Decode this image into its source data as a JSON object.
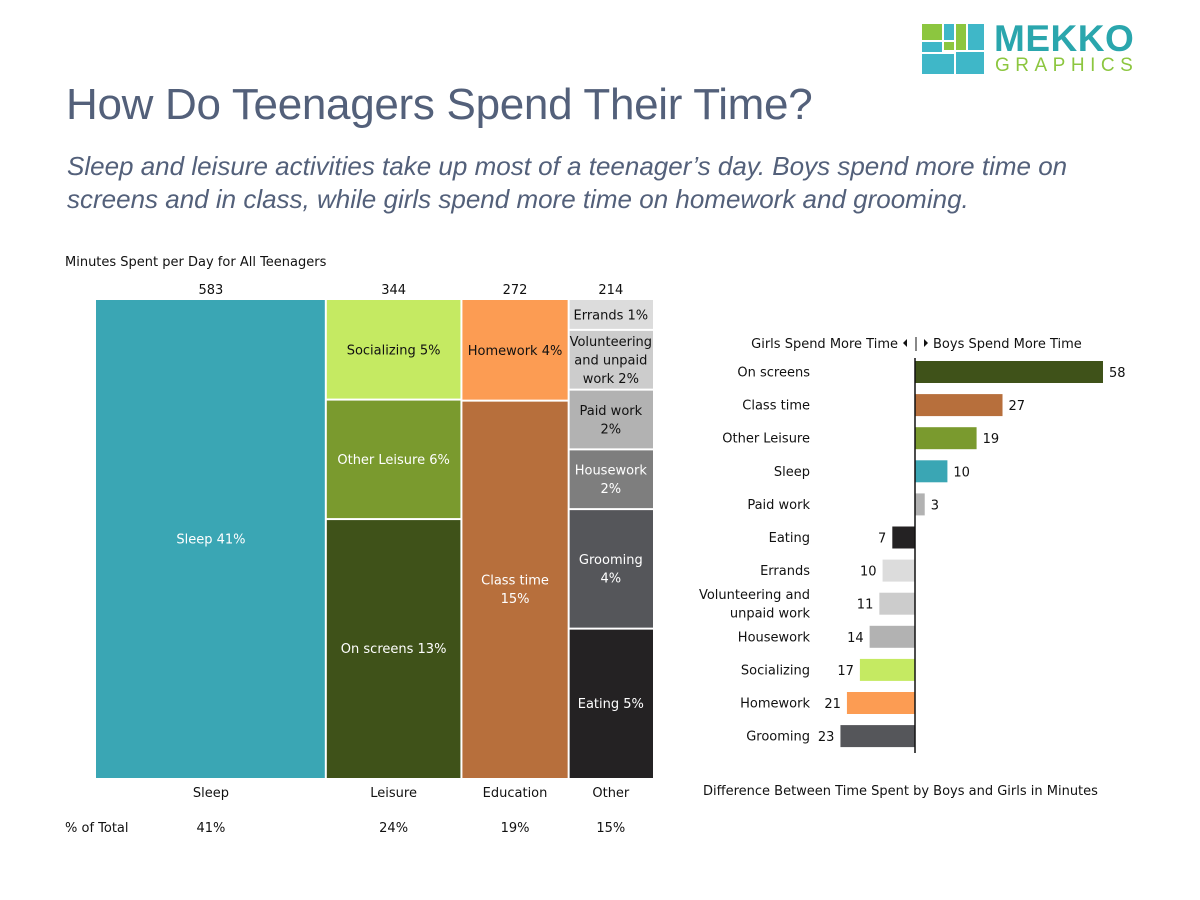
{
  "brand": {
    "line1": "MEKKO",
    "line2": "GRAPHICS"
  },
  "title": "How Do Teenagers Spend Their Time?",
  "subtitle": "Sleep and leisure activities take up most of a teenager’s day.  Boys spend more time on screens and in class, while girls spend more time on homework and grooming.",
  "chart_data": [
    {
      "type": "mekko",
      "title": "Minutes Spent per Day for All Teenagers",
      "row_label": "% of Total",
      "columns": [
        {
          "name": "Sleep",
          "total": "583",
          "share": "41%",
          "segments": [
            {
              "label": "Sleep 41%",
              "value": 41,
              "color": "#3aa6b4"
            }
          ]
        },
        {
          "name": "Leisure",
          "total": "344",
          "share": "24%",
          "segments": [
            {
              "label": "Socializing 5%",
              "value": 5,
              "color": "#c5ea62"
            },
            {
              "label": "Other Leisure 6%",
              "value": 6,
              "color": "#7a9a2e"
            },
            {
              "label": "On screens 13%",
              "value": 13,
              "color": "#3f5219"
            }
          ]
        },
        {
          "name": "Education",
          "total": "272",
          "share": "19%",
          "segments": [
            {
              "label": "Homework 4%",
              "value": 4,
              "color": "#fc9c53"
            },
            {
              "label": "Class time 15%",
              "value": 15,
              "color": "#b76f3c"
            }
          ]
        },
        {
          "name": "Other",
          "total": "214",
          "share": "15%",
          "segments": [
            {
              "label": "Errands 1%",
              "value": 1,
              "color": "#dcdcdc"
            },
            {
              "label": "Volunteering and unpaid work 2%",
              "value": 2,
              "color": "#cccccc"
            },
            {
              "label": "Paid work 2%",
              "value": 2,
              "color": "#b2b2b2"
            },
            {
              "label": "Housework 2%",
              "value": 2,
              "color": "#7e7e7e"
            },
            {
              "label": "Grooming 4%",
              "value": 4,
              "color": "#55565a"
            },
            {
              "label": "Eating 5%",
              "value": 5,
              "color": "#242223"
            }
          ]
        }
      ]
    },
    {
      "type": "bar",
      "orientation": "horizontal",
      "header_left": "Girls Spend More Time",
      "header_right": "Boys Spend More Time",
      "xlabel": "Difference Between Time Spent by Boys and Girls in Minutes",
      "categories": [
        "On screens",
        "Class time",
        "Other Leisure",
        "Sleep",
        "Paid work",
        "Eating",
        "Errands",
        "Volunteering and unpaid work",
        "Housework",
        "Socializing",
        "Homework",
        "Grooming"
      ],
      "values": [
        58,
        27,
        19,
        10,
        3,
        -7,
        -10,
        -11,
        -14,
        -17,
        -21,
        -23
      ],
      "colors": [
        "#3f5219",
        "#b76f3c",
        "#7a9a2e",
        "#3aa6b4",
        "#b2b2b2",
        "#242223",
        "#dcdcdc",
        "#cccccc",
        "#b2b2b2",
        "#c5ea62",
        "#fc9c53",
        "#55565a"
      ]
    }
  ]
}
